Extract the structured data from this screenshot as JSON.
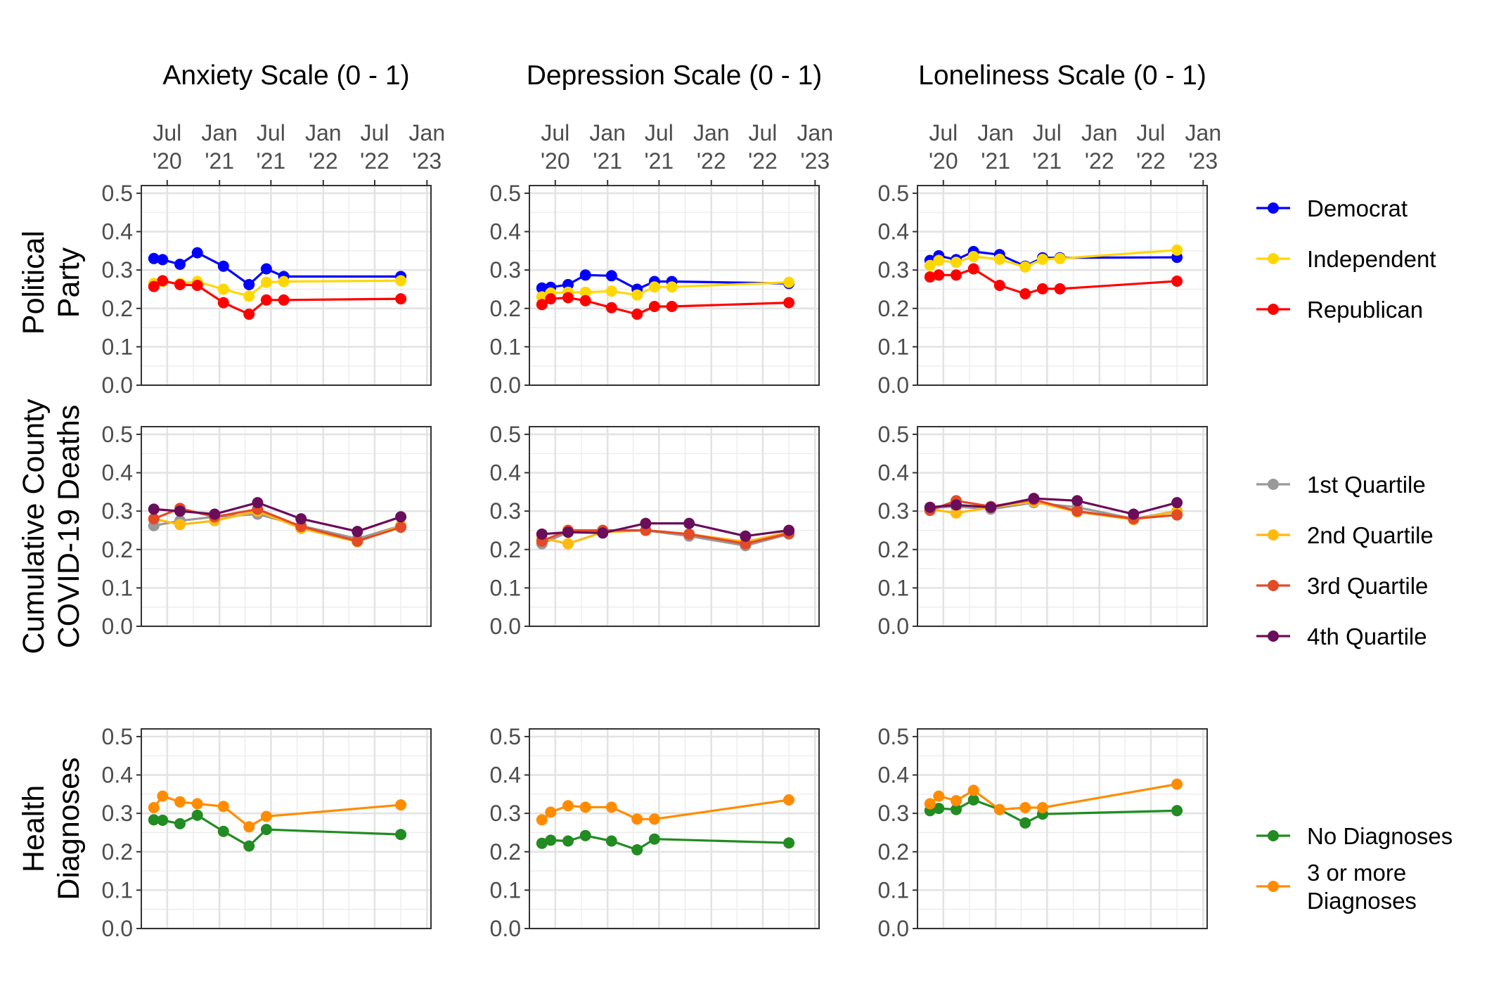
{
  "chart_data": {
    "type": "line",
    "layout": "faceted-grid",
    "columns": [
      "Anxiety Scale (0 - 1)",
      "Depression Scale (0 - 1)",
      "Loneliness Scale (0 - 1)"
    ],
    "rows": [
      {
        "label_lines": [
          "Political",
          "Party"
        ]
      },
      {
        "label_lines": [
          "Cumulative County",
          "COVID-19 Deaths"
        ]
      },
      {
        "label_lines": [
          "Health",
          "Diagnoses"
        ]
      }
    ],
    "x_axis": {
      "position": "top",
      "range": [
        "2020-04-01",
        "2023-01-15"
      ],
      "ticks": [
        {
          "date": "2020-07-01",
          "lines": [
            "Jul",
            "'20"
          ]
        },
        {
          "date": "2021-01-01",
          "lines": [
            "Jan",
            "'21"
          ]
        },
        {
          "date": "2021-07-01",
          "lines": [
            "Jul",
            "'21"
          ]
        },
        {
          "date": "2022-01-01",
          "lines": [
            "Jan",
            "'22"
          ]
        },
        {
          "date": "2022-07-01",
          "lines": [
            "Jul",
            "'22"
          ]
        },
        {
          "date": "2023-01-01",
          "lines": [
            "Jan",
            "'23"
          ]
        }
      ]
    },
    "y_axis": {
      "ylim": [
        0,
        0.52
      ],
      "ticks": [
        {
          "value": 0.0,
          "label": "0.0"
        },
        {
          "value": 0.1,
          "label": "0.1"
        },
        {
          "value": 0.2,
          "label": "0.2"
        },
        {
          "value": 0.3,
          "label": "0.3"
        },
        {
          "value": 0.4,
          "label": "0.4"
        },
        {
          "value": 0.5,
          "label": "0.5"
        }
      ]
    },
    "grid": true,
    "legend_placement": "right",
    "legends": [
      {
        "row": 0,
        "entries": [
          {
            "lines": [
              "Democrat"
            ],
            "color": "#0000ff"
          },
          {
            "lines": [
              "Independent"
            ],
            "color": "#ffd700"
          },
          {
            "lines": [
              "Republican"
            ],
            "color": "#ff0000"
          }
        ]
      },
      {
        "row": 1,
        "entries": [
          {
            "lines": [
              "1st Quartile"
            ],
            "color": "#999999"
          },
          {
            "lines": [
              "2nd Quartile"
            ],
            "color": "#ffb90f"
          },
          {
            "lines": [
              "3rd Quartile"
            ],
            "color": "#e34a27"
          },
          {
            "lines": [
              "4th Quartile"
            ],
            "color": "#6a0d5a"
          }
        ]
      },
      {
        "row": 2,
        "entries": [
          {
            "lines": [
              "No Diagnoses"
            ],
            "color": "#228b22"
          },
          {
            "lines": [
              "3 or more",
              "Diagnoses"
            ],
            "color": "#ff8c00"
          }
        ]
      }
    ],
    "panels": [
      {
        "row": 0,
        "col": 0,
        "series": [
          {
            "name": "Democrat",
            "color": "#0000ff",
            "x": [
              "2020-05-15",
              "2020-06-15",
              "2020-08-15",
              "2020-10-15",
              "2021-01-15",
              "2021-04-15",
              "2021-06-15",
              "2021-08-15",
              "2022-10-01"
            ],
            "y": [
              0.33,
              0.327,
              0.315,
              0.345,
              0.31,
              0.262,
              0.303,
              0.283,
              0.283
            ]
          },
          {
            "name": "Independent",
            "color": "#ffd700",
            "x": [
              "2020-05-15",
              "2020-06-15",
              "2020-08-15",
              "2020-10-15",
              "2021-01-15",
              "2021-04-15",
              "2021-06-15",
              "2021-08-15",
              "2022-10-01"
            ],
            "y": [
              0.265,
              0.27,
              0.265,
              0.27,
              0.25,
              0.232,
              0.268,
              0.27,
              0.272
            ]
          },
          {
            "name": "Republican",
            "color": "#ff0000",
            "x": [
              "2020-05-15",
              "2020-06-15",
              "2020-08-15",
              "2020-10-15",
              "2021-01-15",
              "2021-04-15",
              "2021-06-15",
              "2021-08-15",
              "2022-10-01"
            ],
            "y": [
              0.257,
              0.272,
              0.262,
              0.26,
              0.215,
              0.185,
              0.222,
              0.222,
              0.225
            ]
          }
        ]
      },
      {
        "row": 0,
        "col": 1,
        "series": [
          {
            "name": "Democrat",
            "color": "#0000ff",
            "x": [
              "2020-05-15",
              "2020-06-15",
              "2020-08-15",
              "2020-10-15",
              "2021-01-15",
              "2021-04-15",
              "2021-06-15",
              "2021-08-15",
              "2022-10-01"
            ],
            "y": [
              0.253,
              0.255,
              0.262,
              0.287,
              0.285,
              0.25,
              0.27,
              0.27,
              0.265
            ]
          },
          {
            "name": "Independent",
            "color": "#ffd700",
            "x": [
              "2020-05-15",
              "2020-06-15",
              "2020-08-15",
              "2020-10-15",
              "2021-01-15",
              "2021-04-15",
              "2021-06-15",
              "2021-08-15",
              "2022-10-01"
            ],
            "y": [
              0.23,
              0.24,
              0.242,
              0.242,
              0.245,
              0.235,
              0.256,
              0.256,
              0.268
            ]
          },
          {
            "name": "Republican",
            "color": "#ff0000",
            "x": [
              "2020-05-15",
              "2020-06-15",
              "2020-08-15",
              "2020-10-15",
              "2021-01-15",
              "2021-04-15",
              "2021-06-15",
              "2021-08-15",
              "2022-10-01"
            ],
            "y": [
              0.21,
              0.225,
              0.228,
              0.22,
              0.202,
              0.185,
              0.205,
              0.205,
              0.215
            ]
          }
        ]
      },
      {
        "row": 0,
        "col": 2,
        "series": [
          {
            "name": "Democrat",
            "color": "#0000ff",
            "x": [
              "2020-05-15",
              "2020-06-15",
              "2020-08-15",
              "2020-10-15",
              "2021-01-15",
              "2021-04-15",
              "2021-06-15",
              "2021-08-15",
              "2022-10-01"
            ],
            "y": [
              0.325,
              0.337,
              0.327,
              0.348,
              0.34,
              0.31,
              0.332,
              0.332,
              0.333
            ]
          },
          {
            "name": "Independent",
            "color": "#ffd700",
            "x": [
              "2020-05-15",
              "2020-06-15",
              "2020-08-15",
              "2020-10-15",
              "2021-01-15",
              "2021-04-15",
              "2021-06-15",
              "2021-08-15",
              "2022-10-01"
            ],
            "y": [
              0.312,
              0.325,
              0.32,
              0.335,
              0.328,
              0.308,
              0.328,
              0.33,
              0.352
            ]
          },
          {
            "name": "Republican",
            "color": "#ff0000",
            "x": [
              "2020-05-15",
              "2020-06-15",
              "2020-08-15",
              "2020-10-15",
              "2021-01-15",
              "2021-04-15",
              "2021-06-15",
              "2021-08-15",
              "2022-10-01"
            ],
            "y": [
              0.282,
              0.287,
              0.287,
              0.303,
              0.26,
              0.238,
              0.251,
              0.251,
              0.271
            ]
          }
        ]
      },
      {
        "row": 1,
        "col": 0,
        "series": [
          {
            "name": "1st Quartile",
            "color": "#999999",
            "x": [
              "2020-05-15",
              "2020-08-15",
              "2020-12-15",
              "2021-05-15",
              "2021-10-15",
              "2022-05-01",
              "2022-10-01"
            ],
            "y": [
              0.262,
              0.275,
              0.285,
              0.292,
              0.262,
              0.228,
              0.262
            ]
          },
          {
            "name": "2nd Quartile",
            "color": "#ffb90f",
            "x": [
              "2020-05-15",
              "2020-08-15",
              "2020-12-15",
              "2021-05-15",
              "2021-10-15",
              "2022-05-01",
              "2022-10-01"
            ],
            "y": [
              0.28,
              0.265,
              0.275,
              0.3,
              0.255,
              0.22,
              0.262
            ]
          },
          {
            "name": "3rd Quartile",
            "color": "#e34a27",
            "x": [
              "2020-05-15",
              "2020-08-15",
              "2020-12-15",
              "2021-05-15",
              "2021-10-15",
              "2022-05-01",
              "2022-10-01"
            ],
            "y": [
              0.28,
              0.307,
              0.285,
              0.305,
              0.26,
              0.222,
              0.258
            ]
          },
          {
            "name": "4th Quartile",
            "color": "#6a0d5a",
            "x": [
              "2020-05-15",
              "2020-08-15",
              "2020-12-15",
              "2021-05-15",
              "2021-10-15",
              "2022-05-01",
              "2022-10-01"
            ],
            "y": [
              0.305,
              0.3,
              0.292,
              0.322,
              0.28,
              0.247,
              0.285
            ]
          }
        ]
      },
      {
        "row": 1,
        "col": 1,
        "series": [
          {
            "name": "1st Quartile",
            "color": "#999999",
            "x": [
              "2020-05-15",
              "2020-08-15",
              "2020-12-15",
              "2021-05-15",
              "2021-10-15",
              "2022-05-01",
              "2022-10-01"
            ],
            "y": [
              0.215,
              0.245,
              0.245,
              0.25,
              0.235,
              0.21,
              0.24
            ]
          },
          {
            "name": "2nd Quartile",
            "color": "#ffb90f",
            "x": [
              "2020-05-15",
              "2020-08-15",
              "2020-12-15",
              "2021-05-15",
              "2021-10-15",
              "2022-05-01",
              "2022-10-01"
            ],
            "y": [
              0.23,
              0.215,
              0.245,
              0.25,
              0.24,
              0.22,
              0.245
            ]
          },
          {
            "name": "3rd Quartile",
            "color": "#e34a27",
            "x": [
              "2020-05-15",
              "2020-08-15",
              "2020-12-15",
              "2021-05-15",
              "2021-10-15",
              "2022-05-01",
              "2022-10-01"
            ],
            "y": [
              0.222,
              0.25,
              0.25,
              0.25,
              0.24,
              0.215,
              0.242
            ]
          },
          {
            "name": "4th Quartile",
            "color": "#6a0d5a",
            "x": [
              "2020-05-15",
              "2020-08-15",
              "2020-12-15",
              "2021-05-15",
              "2021-10-15",
              "2022-05-01",
              "2022-10-01"
            ],
            "y": [
              0.24,
              0.245,
              0.243,
              0.268,
              0.268,
              0.235,
              0.25
            ]
          }
        ]
      },
      {
        "row": 1,
        "col": 2,
        "series": [
          {
            "name": "1st Quartile",
            "color": "#999999",
            "x": [
              "2020-05-15",
              "2020-08-15",
              "2020-12-15",
              "2021-05-15",
              "2021-10-15",
              "2022-05-01",
              "2022-10-01"
            ],
            "y": [
              0.308,
              0.312,
              0.305,
              0.322,
              0.31,
              0.28,
              0.3
            ]
          },
          {
            "name": "2nd Quartile",
            "color": "#ffb90f",
            "x": [
              "2020-05-15",
              "2020-08-15",
              "2020-12-15",
              "2021-05-15",
              "2021-10-15",
              "2022-05-01",
              "2022-10-01"
            ],
            "y": [
              0.305,
              0.295,
              0.31,
              0.325,
              0.298,
              0.278,
              0.3
            ]
          },
          {
            "name": "3rd Quartile",
            "color": "#e34a27",
            "x": [
              "2020-05-15",
              "2020-08-15",
              "2020-12-15",
              "2021-05-15",
              "2021-10-15",
              "2022-05-01",
              "2022-10-01"
            ],
            "y": [
              0.302,
              0.327,
              0.312,
              0.33,
              0.3,
              0.28,
              0.29
            ]
          },
          {
            "name": "4th Quartile",
            "color": "#6a0d5a",
            "x": [
              "2020-05-15",
              "2020-08-15",
              "2020-12-15",
              "2021-05-15",
              "2021-10-15",
              "2022-05-01",
              "2022-10-01"
            ],
            "y": [
              0.31,
              0.316,
              0.31,
              0.333,
              0.327,
              0.292,
              0.322
            ]
          }
        ]
      },
      {
        "row": 2,
        "col": 0,
        "series": [
          {
            "name": "No Diagnoses",
            "color": "#228b22",
            "x": [
              "2020-05-15",
              "2020-06-15",
              "2020-08-15",
              "2020-10-15",
              "2021-01-15",
              "2021-04-15",
              "2021-06-15",
              "2022-10-01"
            ],
            "y": [
              0.283,
              0.282,
              0.273,
              0.295,
              0.253,
              0.215,
              0.258,
              0.245
            ]
          },
          {
            "name": "3 or more Diagnoses",
            "color": "#ff8c00",
            "x": [
              "2020-05-15",
              "2020-06-15",
              "2020-08-15",
              "2020-10-15",
              "2021-01-15",
              "2021-04-15",
              "2021-06-15",
              "2022-10-01"
            ],
            "y": [
              0.315,
              0.345,
              0.33,
              0.325,
              0.318,
              0.265,
              0.292,
              0.322
            ]
          }
        ]
      },
      {
        "row": 2,
        "col": 1,
        "series": [
          {
            "name": "No Diagnoses",
            "color": "#228b22",
            "x": [
              "2020-05-15",
              "2020-06-15",
              "2020-08-15",
              "2020-10-15",
              "2021-01-15",
              "2021-04-15",
              "2021-06-15",
              "2022-10-01"
            ],
            "y": [
              0.222,
              0.23,
              0.228,
              0.242,
              0.228,
              0.205,
              0.233,
              0.223
            ]
          },
          {
            "name": "3 or more Diagnoses",
            "color": "#ff8c00",
            "x": [
              "2020-05-15",
              "2020-06-15",
              "2020-08-15",
              "2020-10-15",
              "2021-01-15",
              "2021-04-15",
              "2021-06-15",
              "2022-10-01"
            ],
            "y": [
              0.283,
              0.303,
              0.32,
              0.316,
              0.316,
              0.285,
              0.285,
              0.335
            ]
          }
        ]
      },
      {
        "row": 2,
        "col": 2,
        "series": [
          {
            "name": "No Diagnoses",
            "color": "#228b22",
            "x": [
              "2020-05-15",
              "2020-06-15",
              "2020-08-15",
              "2020-10-15",
              "2021-01-15",
              "2021-04-15",
              "2021-06-15",
              "2022-10-01"
            ],
            "y": [
              0.307,
              0.313,
              0.31,
              0.335,
              0.31,
              0.275,
              0.298,
              0.307
            ]
          },
          {
            "name": "3 or more Diagnoses",
            "color": "#ff8c00",
            "x": [
              "2020-05-15",
              "2020-06-15",
              "2020-08-15",
              "2020-10-15",
              "2021-01-15",
              "2021-04-15",
              "2021-06-15",
              "2022-10-01"
            ],
            "y": [
              0.325,
              0.345,
              0.333,
              0.36,
              0.31,
              0.315,
              0.315,
              0.376
            ]
          }
        ]
      }
    ]
  }
}
